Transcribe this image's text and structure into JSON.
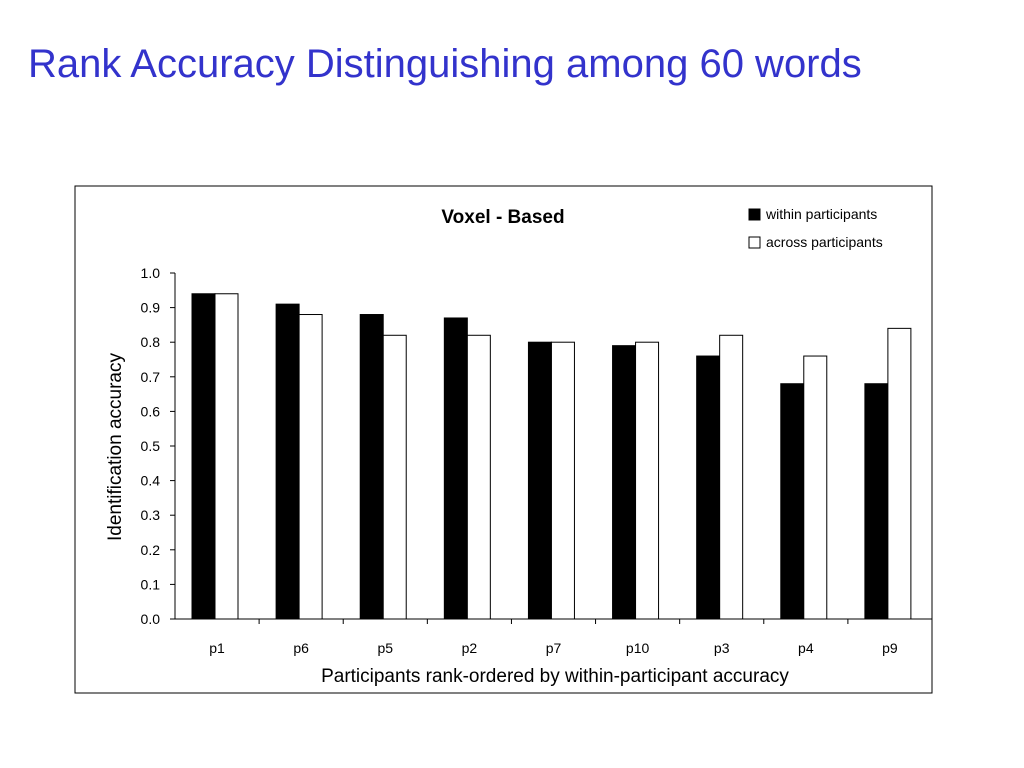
{
  "slide": {
    "title": "Rank Accuracy Distinguishing among 60 words",
    "title_color": "#3333cc"
  },
  "chart_data": {
    "type": "bar",
    "title": "Voxel - Based",
    "xlabel": "Participants rank-ordered by within-participant accuracy",
    "ylabel": "Identification accuracy",
    "ylim": [
      0.0,
      1.0
    ],
    "yticks": [
      "0.0",
      "0.1",
      "0.2",
      "0.3",
      "0.4",
      "0.5",
      "0.6",
      "0.7",
      "0.8",
      "0.9",
      "1.0"
    ],
    "categories": [
      "p1",
      "p6",
      "p5",
      "p2",
      "p7",
      "p10",
      "p3",
      "p4",
      "p9"
    ],
    "series": [
      {
        "name": "within participants",
        "color": "#000000",
        "values": [
          0.94,
          0.91,
          0.88,
          0.87,
          0.8,
          0.79,
          0.76,
          0.68,
          0.68
        ]
      },
      {
        "name": "across participants",
        "color": "#ffffff",
        "values": [
          0.94,
          0.88,
          0.82,
          0.82,
          0.8,
          0.8,
          0.82,
          0.76,
          0.84
        ]
      }
    ],
    "legend_position": "top-right",
    "grid": false
  }
}
